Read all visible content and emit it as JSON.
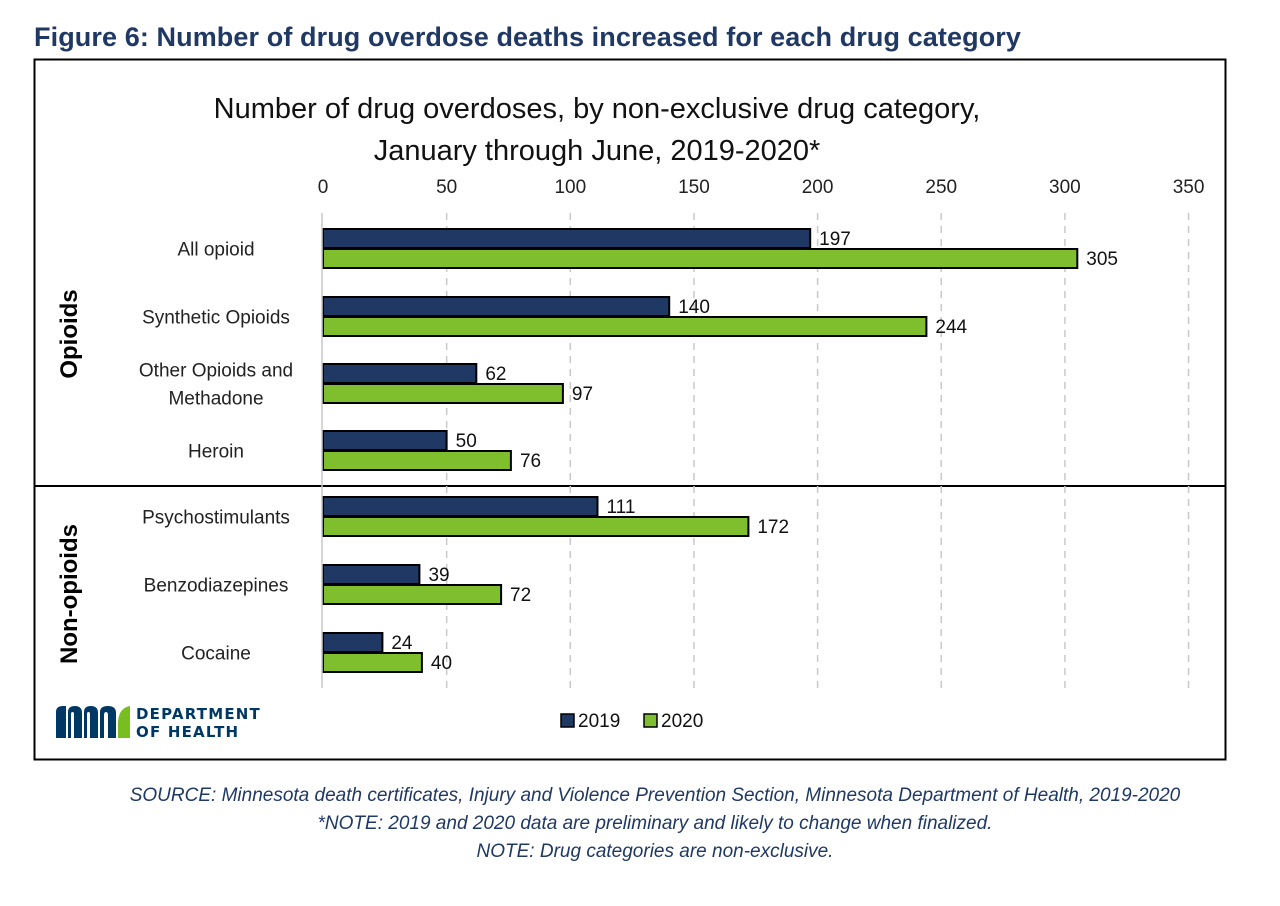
{
  "figure_heading": "Figure 6: Number of drug overdose deaths increased for each drug category",
  "logo": {
    "line1": "DEPARTMENT",
    "line2": "OF HEALTH",
    "icon": "mn-state-logo-icon"
  },
  "notes": {
    "source": "SOURCE: Minnesota death certificates, Injury and Violence Prevention Section, Minnesota Department of Health, 2019-2020",
    "note1": "*NOTE: 2019 and 2020 data are preliminary and likely to change when finalized.",
    "note2": "NOTE: Drug categories are non-exclusive."
  },
  "colors": {
    "series_2019": "#1f3864",
    "series_2020": "#7fbf2e",
    "heading": "#1f3864"
  },
  "chart_data": {
    "type": "bar",
    "orientation": "horizontal",
    "title": "Number of drug overdoses, by non-exclusive drug category, January through June, 2019-2020*",
    "title_lines": [
      "Number of drug overdoses, by non-exclusive drug category,",
      "January through June, 2019-2020*"
    ],
    "xlim": [
      0,
      350
    ],
    "xticks": [
      0,
      50,
      100,
      150,
      200,
      250,
      300,
      350
    ],
    "x_axis_position": "top",
    "grid": "vertical dashed",
    "legend_position": "bottom",
    "categories": [
      "All opioid",
      "Synthetic Opioids",
      "Other Opioids and Methadone",
      "Heroin",
      "Psychostimulants",
      "Benzodiazepines",
      "Cocaine"
    ],
    "category_lines": [
      [
        "All opioid"
      ],
      [
        "Synthetic Opioids"
      ],
      [
        "Other Opioids and",
        "Methadone"
      ],
      [
        "Heroin"
      ],
      [
        "Psychostimulants"
      ],
      [
        "Benzodiazepines"
      ],
      [
        "Cocaine"
      ]
    ],
    "groups": [
      {
        "name": "Opioids",
        "categories": [
          "All opioid",
          "Synthetic Opioids",
          "Other Opioids and Methadone",
          "Heroin"
        ]
      },
      {
        "name": "Non-opioids",
        "categories": [
          "Psychostimulants",
          "Benzodiazepines",
          "Cocaine"
        ]
      }
    ],
    "series": [
      {
        "name": "2019",
        "values": [
          197,
          140,
          62,
          50,
          111,
          39,
          24
        ]
      },
      {
        "name": "2020",
        "values": [
          305,
          244,
          97,
          76,
          172,
          72,
          40
        ]
      }
    ]
  }
}
